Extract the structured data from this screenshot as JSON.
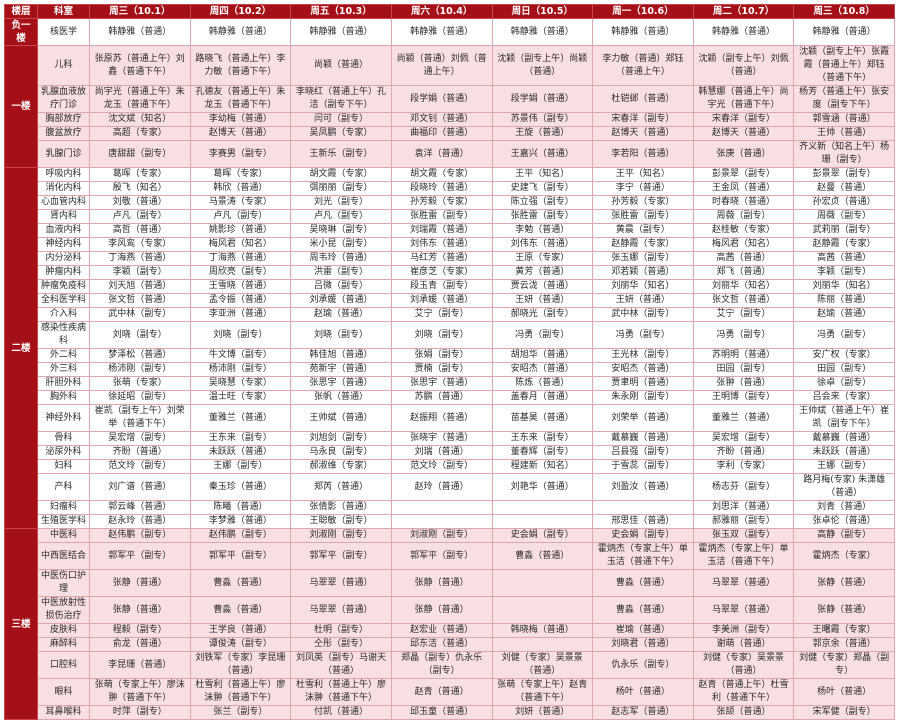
{
  "colors": {
    "header_bg": "#a50f17",
    "floor_bg": "#a50f17",
    "pink_row": "#f7dfe2",
    "grid": "#dea6ad"
  },
  "header": {
    "floor": "楼层",
    "dept": "科室",
    "days": [
      "周三（10.1）",
      "周四（10.2）",
      "周五（10.3）",
      "周六（10.4）",
      "周日（10.5）",
      "周一（10.6）",
      "周二（10.7）",
      "周三（10.8）"
    ]
  },
  "floors": [
    {
      "name": "负一楼",
      "shade": "white",
      "rows": [
        {
          "dept": "核医学",
          "cells": [
            "韩静雅（普通）",
            "韩静雅（普通）",
            "韩静雅（普通）",
            "韩静雅（普通）",
            "韩静雅（普通）",
            "韩静雅（普通）",
            "韩静雅（普通）",
            "韩静雅（普通）"
          ]
        }
      ]
    },
    {
      "name": "一楼",
      "shade": "pink",
      "rows": [
        {
          "dept": "儿科",
          "cells": [
            "张原苏（普通上午）刘鑫（普通下午）",
            "路晓飞（普通上午）李力敏（普通下午）",
            "尚颖（普通）",
            "尚颖（普通）刘佩（普通上午）",
            "沈颖（副专上午）尚颖（普通）",
            "李力敏（普通）郑钰（普通上午）",
            "沈颖（副专上午）刘佩（普通）",
            "沈颖（副专上午）张霞霞（普通上午）郑钰（普通下午）"
          ]
        },
        {
          "dept": "乳腺血液放疗门诊",
          "cells": [
            "尚宇光（普通上午）朱龙玉（普通下午）",
            "孔德友（普通上午）朱龙玉（普通下午）",
            "李晓红（普通上午）孔洁（副专下午）",
            "段学娟（普通）",
            "段学娟（普通）",
            "杜铠邺（普通）",
            "韩慧娜（普通上午）尚宇光（普通下午）",
            "杨芳（普通上午）张安度（副专下午）"
          ]
        },
        {
          "dept": "胸部放疗",
          "cells": [
            "沈文斌（知名）",
            "李幼梅（普通）",
            "闫可（副专）",
            "邓文钊（普通）",
            "苏景伟（副专）",
            "宋春洋（副专）",
            "宋春洋（副专）",
            "郭雪涵（普通）"
          ]
        },
        {
          "dept": "腹盆放疗",
          "cells": [
            "高超（专家）",
            "赵博天（普通）",
            "吴凤鹏（专家）",
            "曲福印（普通）",
            "王旋（普通）",
            "赵博天（普通）",
            "赵博天（普通）",
            "王帅（普通）"
          ]
        },
        {
          "dept": "乳腺门诊",
          "cells": [
            "唐甜甜（副专）",
            "李赛男（副专）",
            "王新乐（副专）",
            "袁洋（普通）",
            "王嘉兴（普通）",
            "李若阳（普通）",
            "张庚（普通）",
            "齐义新（知名上午）杨珊（副专）"
          ]
        }
      ]
    },
    {
      "name": "二楼",
      "shade": "white",
      "rows": [
        {
          "dept": "呼吸内科",
          "cells": [
            "葛晖（专家）",
            "葛晖（专家）",
            "胡文霞（专家）",
            "胡文霞（专家）",
            "王平（知名）",
            "王平（知名）",
            "彭景翠（副专）",
            "彭景翠（副专）"
          ]
        },
        {
          "dept": "消化内科",
          "cells": [
            "殷飞（知名）",
            "韩欣（普通）",
            "弭丽丽（副专）",
            "段晓玲（普通）",
            "史建飞（副专）",
            "李宁（普通）",
            "王金凤（普通）",
            "赵曼（普通）"
          ]
        },
        {
          "dept": "心血管内科",
          "cells": [
            "刘敬（普通）",
            "马景涛（专家）",
            "刘光（副专）",
            "孙芳毅（专家）",
            "陈立强（副专）",
            "孙芳毅（专家）",
            "时春晓（普通）",
            "孙宏贞（普通）"
          ]
        },
        {
          "dept": "肾内科",
          "cells": [
            "卢凡（副专）",
            "卢凡（副专）",
            "卢凡（副专）",
            "张胜雷（副专）",
            "张胜雷（副专）",
            "张胜雷（副专）",
            "周薇（副专）",
            "周薇（副专）"
          ]
        },
        {
          "dept": "血液内科",
          "cells": [
            "高哲（普通）",
            "姚影珍（普通）",
            "吴晓琳（副专）",
            "刘瑞霞（普通）",
            "李勉（普通）",
            "黄晨（副专）",
            "赵桂敏（专家）",
            "武莉丽（副专）"
          ]
        },
        {
          "dept": "神经内科",
          "cells": [
            "李风鸾（专家）",
            "梅风君（知名）",
            "米小昆（副专）",
            "刘伟东（普通）",
            "刘伟东（普通）",
            "赵静霞（专家）",
            "梅风君（知名）",
            "赵静霞（专家）"
          ]
        },
        {
          "dept": "内分泌科",
          "cells": [
            "丁海燕（普通）",
            "丁海燕（普通）",
            "周韦玲（普通）",
            "马红芳（普通）",
            "王原（专家）",
            "张玉娜（副专）",
            "高茜（普通）",
            "高茜（普通）"
          ]
        },
        {
          "dept": "肿瘤内科",
          "cells": [
            "李颖（副专）",
            "周欣亮（副专）",
            "洪雷（副专）",
            "崔彦芝（专家）",
            "黄芳（普通）",
            "邓若颖（普通）",
            "郑飞（普通）",
            "李颖（副专）"
          ]
        },
        {
          "dept": "肿瘤免疫科",
          "cells": [
            "刘天旭（普通）",
            "王雪晓（普通）",
            "吕微（副专）",
            "段玉青（副专）",
            "贾云泷（普通）",
            "刘丽华（知名）",
            "刘丽华（知名）",
            "刘丽华（知名）"
          ]
        },
        {
          "dept": "全科医学科",
          "cells": [
            "张文哲（普通）",
            "孟令振（普通）",
            "刘承媛（普通）",
            "刘承媛（普通）",
            "王妍（普通）",
            "王妍（普通）",
            "张文哲（普通）",
            "陈丽（普通）"
          ]
        },
        {
          "dept": "介入科",
          "cells": [
            "武中林（副专）",
            "李亚洲（普通）",
            "赵瑜（普通）",
            "艾宁（副专）",
            "郝晓光（副专）",
            "武中林（副专）",
            "艾宁（副专）",
            "赵瑜（普通）"
          ]
        },
        {
          "dept": "感染性疾病科",
          "cells": [
            "刘晓（副专）",
            "刘晓（副专）",
            "刘晓（副专）",
            "刘晓（副专）",
            "冯勇（副专）",
            "冯勇（副专）",
            "冯勇（副专）",
            "冯勇（副专）"
          ]
        },
        {
          "dept": "外二科",
          "cells": [
            "梦泽松（普通）",
            "牛文博（副专）",
            "韩佳旭（普通）",
            "张娟（副专）",
            "胡旭华（普通）",
            "王光林（副专）",
            "苏明明（普通）",
            "安广权（专家）"
          ]
        },
        {
          "dept": "外三科",
          "cells": [
            "杨沛刚（副专）",
            "杨沛刚（副专）",
            "苑新宇（普通）",
            "贾楠（副专）",
            "安昭杰（普通）",
            "安昭杰（普通）",
            "田园（副专）",
            "田园（副专）"
          ]
        },
        {
          "dept": "肝胆外科",
          "cells": [
            "张萌（专家）",
            "吴晓慧（专家）",
            "张思宇（普通）",
            "张思宇（普通）",
            "陈炼（普通）",
            "贾聿明（普通）",
            "张翀（普通）",
            "徐卓（副专）"
          ]
        },
        {
          "dept": "胸外科",
          "cells": [
            "徐延昭（副专）",
            "温士旺（专家）",
            "张帆（普通）",
            "苏鹏（普通）",
            "盖春月（普通）",
            "朱永刚（副专）",
            "王明博（副专）",
            "吕会来（专家）"
          ]
        },
        {
          "dept": "神经外科",
          "cells": [
            "崔凯（副专上午）刘荣举（普通下午）",
            "董雅兰（普通）",
            "王帅斌（普通）",
            "赵振翔（普通）",
            "苗基昊（普通）",
            "刘荣举（普通）",
            "董雅兰（普通）",
            "王帅斌（普通上午）崔凯（副专下午）"
          ]
        },
        {
          "dept": "骨科",
          "cells": [
            "吴宏增（副专）",
            "王东来（副专）",
            "刘旭剑（副专）",
            "张晓宇（普通）",
            "王东来（副专）",
            "戴慕巍（普通）",
            "吴宏增（副专）",
            "戴慕巍（普通）"
          ]
        },
        {
          "dept": "泌尿外科",
          "cells": [
            "齐盼（普通）",
            "未跃跃（普通）",
            "马永良（副专）",
            "刘瑞（普通）",
            "董春辉（副专）",
            "吕县强（副专）",
            "齐盼（普通）",
            "未跃跃（普通）"
          ]
        },
        {
          "dept": "妇科",
          "cells": [
            "范文玲（副专）",
            "王娜（副专）",
            "郝淑维（专家）",
            "范文玲（副专）",
            "程建新（知名）",
            "于雪蕊（副专）",
            "李利（专家）",
            "王娜（副专）"
          ]
        },
        {
          "dept": "产科",
          "cells": [
            "刘广谱（普通）",
            "秦玉珍（普通）",
            "郑芮（普通）",
            "赵玲（普通）",
            "刘艳华（普通）",
            "刘盈汝（普通）",
            "杨志芬（副专）",
            "路月梅(专家) 朱潇雄（普通）"
          ]
        },
        {
          "dept": "妇瘤科",
          "cells": [
            "郭云峰（普通）",
            "陈曦（普通）",
            "张倩影（普通）",
            "",
            "",
            "",
            "刘思洋（普通）",
            "刘青（普通）"
          ]
        },
        {
          "dept": "生殖医学科",
          "cells": [
            "赵永玲（普通）",
            "李梦雅（普通）",
            "王聪敏（副专）",
            "",
            "",
            "邢思佳（普通）",
            "郝雅丽（副专）",
            "张卓伦（普通）"
          ]
        }
      ]
    },
    {
      "name": "三楼",
      "shade": "pink",
      "rows": [
        {
          "dept": "中医科",
          "cells": [
            "赵伟鹏（副专）",
            "赵伟鹏（副专）",
            "刘淑刚（副专）",
            "刘淑刚（副专）",
            "史会娟（副专）",
            "史会娟（副专）",
            "张玉双（副专）",
            "高静（副专）"
          ]
        },
        {
          "dept": "中西医结合",
          "cells": [
            "郭军平（副专）",
            "郭军平（副专）",
            "郭军平（副专）",
            "郭军平（副专）",
            "曹淼（普通）",
            "霍炳杰（专家上午）单玉洁（普通下午）",
            "霍炳杰（专家上午）单玉洁（普通下午）",
            "霍炳杰（专家）"
          ]
        },
        {
          "dept": "中医伤口护理",
          "cells": [
            "张静（普通）",
            "曹淼（普通）",
            "马翠翠（普通）",
            "张静（普通）",
            "",
            "曹淼（普通）",
            "马翠翠（普通）",
            "张静（普通）"
          ]
        },
        {
          "dept": "中医放射性损伤治疗",
          "cells": [
            "张静（普通）",
            "曹淼（普通）",
            "马翠翠（普通）",
            "张静（普通）",
            "",
            "曹淼（普通）",
            "马翠翠（普通）",
            "张静（普通）"
          ]
        },
        {
          "dept": "皮肤科",
          "cells": [
            "程毅（副专）",
            "王学良（普通）",
            "杜明（副专）",
            "赵宏业（普通）",
            "韩晓梅（普通）",
            "崔瑜（普通）",
            "李美洲（副专）",
            "王曙霞（专家）"
          ]
        },
        {
          "dept": "麻醉科",
          "cells": [
            "俞龙（普通）",
            "谭俊涛（副专）",
            "仝彤（副专）",
            "邱东洁（普通）",
            "",
            "刘晓君（普通）",
            "谢萌（普通）",
            "郭京余（普通）"
          ]
        },
        {
          "dept": "口腔科",
          "cells": [
            "李昆珊（普通）",
            "刘铁军（专家）李昆珊（普通）",
            "刘凤英（副专）马谢天（普通）",
            "郑晶（副专）仇永乐（副专）",
            "刘健（专家）吴景景（普通）",
            "仇永乐（副专）",
            "刘健（专家）吴景景（普通）",
            "刘健（专家）郑晶（副专）"
          ]
        },
        {
          "dept": "眼科",
          "cells": [
            "张萌（专家上午）廖沫翀（普通下午）",
            "杜雪利（普通上午）廖沫翀（普通下午）",
            "杜雪利（普通上午）廖沫翀（普通下午）",
            "赵青（普通）",
            "张萌（专家上午）赵青（普通下午）",
            "杨叶（普通）",
            "赵青（普通上午）杜雪利（普通下午）",
            "杨叶（普通）"
          ]
        },
        {
          "dept": "耳鼻喉科",
          "cells": [
            "时萍（副专）",
            "张兰（副专）",
            "付凯（普通）",
            "邱玉童（普通）",
            "刘妍（普通）",
            "赵志军（普通）",
            "张颉（普通）",
            "宋军健（副专）"
          ]
        }
      ]
    }
  ]
}
